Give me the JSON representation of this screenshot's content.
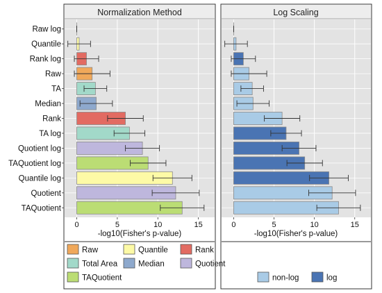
{
  "chart_data": [
    {
      "type": "bar",
      "orientation": "horizontal",
      "title": "Normalization Method",
      "xlabel": "-log10(Fisher's p-value)",
      "xlim": [
        -1.5,
        17.0
      ],
      "xticks": [
        "0",
        "5",
        "10",
        "15"
      ],
      "tick_values": [
        0,
        5,
        10,
        15
      ],
      "grid": true,
      "categories": [
        "Raw log",
        "Quantile",
        "Rank log",
        "Raw",
        "TA",
        "Median",
        "Rank",
        "TA log",
        "Quotient log",
        "TAQuotient log",
        "Quantile log",
        "Quotient",
        "TAQuotient"
      ],
      "values": [
        0.0,
        0.3,
        1.2,
        1.9,
        2.3,
        2.4,
        6.0,
        6.5,
        8.1,
        8.8,
        11.8,
        12.2,
        13.0
      ],
      "error": [
        0.0,
        1.4,
        1.5,
        2.2,
        1.4,
        2.0,
        2.2,
        1.9,
        2.1,
        2.2,
        2.4,
        2.9,
        2.7
      ],
      "groups": [
        "Raw",
        "Quantile",
        "Rank",
        "Raw",
        "Total Area",
        "Median",
        "Rank",
        "Total Area",
        "Quotient",
        "TAQuotient",
        "Quantile",
        "Quotient",
        "TAQuotient"
      ],
      "legend": {
        "placement": "bottom",
        "items": [
          {
            "label": "Raw",
            "color": "#f0a85a"
          },
          {
            "label": "Quantile",
            "color": "#fdfaa6"
          },
          {
            "label": "Rank",
            "color": "#e26b62"
          },
          {
            "label": "Total Area",
            "color": "#a2d9c9"
          },
          {
            "label": "Median",
            "color": "#8ea9cd"
          },
          {
            "label": "Quotient",
            "color": "#beb7dd"
          },
          {
            "label": "TAQuotient",
            "color": "#bbdd74"
          }
        ]
      }
    },
    {
      "type": "bar",
      "orientation": "horizontal",
      "title": "Log Scaling",
      "xlabel": "-log10(Fisher's p-value)",
      "xlim": [
        -1.5,
        17.0
      ],
      "xticks": [
        "0",
        "5",
        "10",
        "15"
      ],
      "tick_values": [
        0,
        5,
        10,
        15
      ],
      "grid": true,
      "categories": [
        "Raw log",
        "Quantile",
        "Rank log",
        "Raw",
        "TA",
        "Median",
        "Rank",
        "TA log",
        "Quotient log",
        "TAQuotient log",
        "Quantile log",
        "Quotient",
        "TAQuotient"
      ],
      "values": [
        0.0,
        0.3,
        1.2,
        1.9,
        2.3,
        2.4,
        6.0,
        6.5,
        8.1,
        8.8,
        11.8,
        12.2,
        13.0
      ],
      "error": [
        0.0,
        1.4,
        1.5,
        2.2,
        1.4,
        2.0,
        2.2,
        1.9,
        2.1,
        2.2,
        2.4,
        2.9,
        2.7
      ],
      "groups": [
        "log",
        "non-log",
        "log",
        "non-log",
        "non-log",
        "non-log",
        "non-log",
        "log",
        "log",
        "log",
        "log",
        "non-log",
        "non-log"
      ],
      "legend": {
        "placement": "bottom",
        "items": [
          {
            "label": "non-log",
            "color": "#a9cbe6"
          },
          {
            "label": "log",
            "color": "#4a74b3"
          }
        ]
      }
    }
  ],
  "colors": {
    "panel_bg": "#e3e3e3",
    "grid": "#ffffff",
    "bar_stroke": "#8a8a8a",
    "error_bar": "#333333",
    "frame": "#333333"
  }
}
